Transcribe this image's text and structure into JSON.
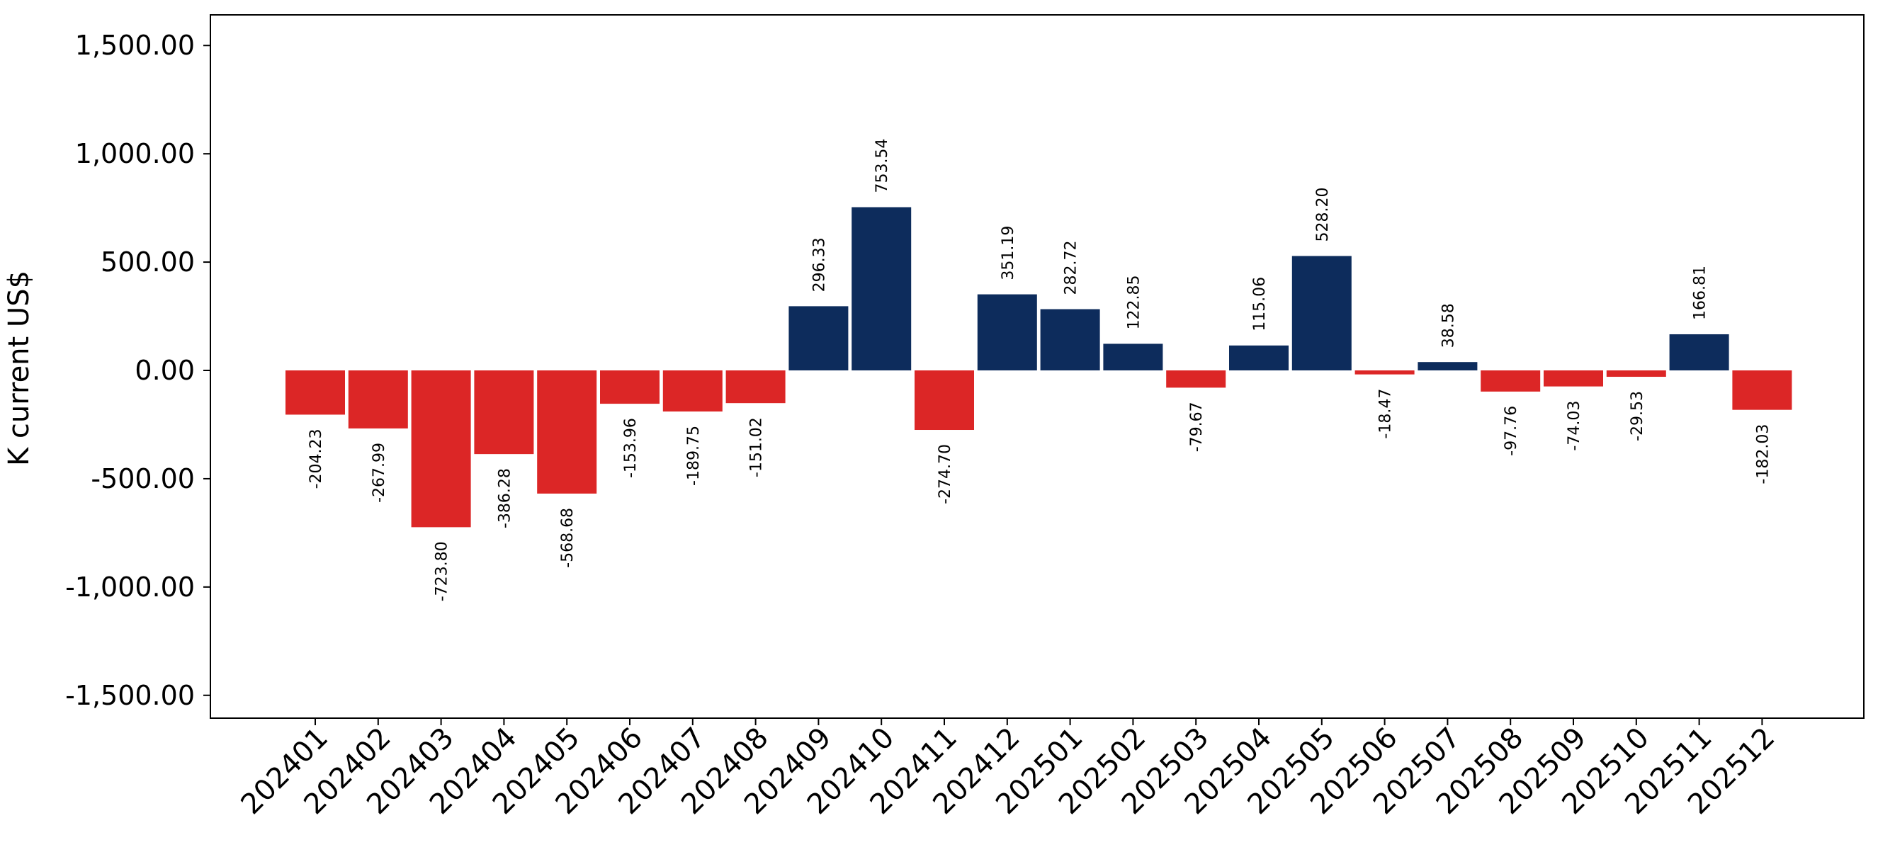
{
  "chart_data": {
    "type": "bar",
    "title": "",
    "xlabel": "",
    "ylabel": "K current US$",
    "ylim": [
      -1600,
      1600
    ],
    "y_ticks": [
      1500,
      1000,
      500,
      0,
      -500,
      -1000,
      -1500
    ],
    "y_tick_labels": [
      "1,500.00",
      "1,000.00",
      "500.00",
      "0.00",
      "-500.00",
      "-1,000.00",
      "-1,500.00"
    ],
    "grid": false,
    "legend": "none",
    "colors": {
      "positive": "#0d2c5c",
      "negative": "#dc2626"
    },
    "categories": [
      "202401",
      "202402",
      "202403",
      "202404",
      "202405",
      "202406",
      "202407",
      "202408",
      "202409",
      "202410",
      "202411",
      "202412",
      "202501",
      "202502",
      "202503",
      "202504",
      "202505",
      "202506",
      "202507",
      "202508",
      "202509",
      "202510",
      "202511",
      "202512"
    ],
    "values": [
      -204.23,
      -267.99,
      -723.8,
      -386.28,
      -568.68,
      -153.96,
      -189.75,
      -151.02,
      296.33,
      753.54,
      -274.7,
      351.19,
      282.72,
      122.85,
      -79.67,
      115.06,
      528.2,
      -18.47,
      38.58,
      -97.76,
      -74.03,
      -29.53,
      166.81,
      -182.03
    ],
    "data_labels": [
      "-204.23",
      "-267.99",
      "-723.80",
      "-386.28",
      "-568.68",
      "-153.96",
      "-189.75",
      "-151.02",
      "296.33",
      "753.54",
      "-274.70",
      "351.19",
      "282.72",
      "122.85",
      "-79.67",
      "115.06",
      "528.20",
      "-18.47",
      "38.58",
      "-97.76",
      "-74.03",
      "-29.53",
      "166.81",
      "-182.03"
    ]
  }
}
